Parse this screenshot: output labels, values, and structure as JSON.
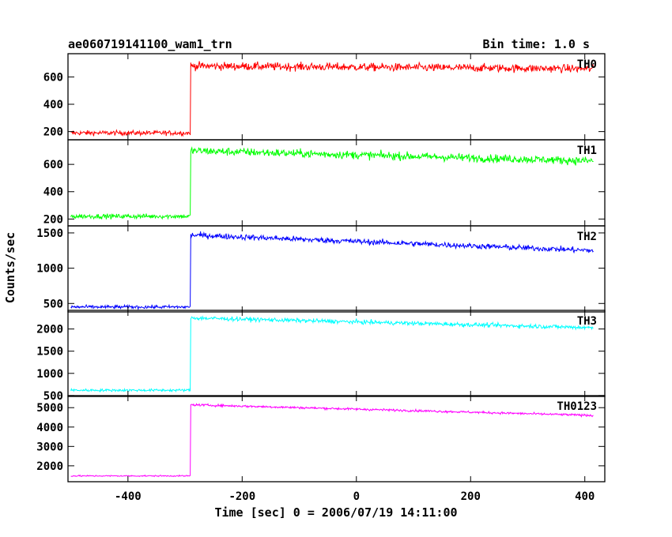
{
  "chart_data": {
    "type": "line",
    "title": "ae060719141100_wam1_trn",
    "bin_time_label": "Bin time: 1.0 s",
    "xlabel": "Time [sec] 0 = 2006/07/19 14:11:00",
    "ylabel": "Counts/sec",
    "xlim": [
      -505,
      435
    ],
    "x_ticks": [
      -400,
      -200,
      0,
      200,
      400
    ],
    "trigger_time": -290,
    "data_range": [
      -500,
      415
    ],
    "grid": false,
    "legend": "none (panel labels at top-right of each panel)",
    "panels": [
      {
        "name": "TH0",
        "color": "#ff0000",
        "ylim": [
          140,
          770
        ],
        "y_ticks": [
          200,
          400,
          600
        ],
        "pre_level": 190,
        "post_start": 680,
        "post_end": 660,
        "noise": 28
      },
      {
        "name": "TH1",
        "color": "#00ff00",
        "ylim": [
          150,
          780
        ],
        "y_ticks": [
          200,
          400,
          600
        ],
        "pre_level": 220,
        "post_start": 700,
        "post_end": 625,
        "noise": 28
      },
      {
        "name": "TH2",
        "color": "#0000ff",
        "ylim": [
          380,
          1600
        ],
        "y_ticks": [
          500,
          1000,
          1500
        ],
        "pre_level": 450,
        "post_start": 1470,
        "post_end": 1250,
        "noise": 38
      },
      {
        "name": "TH3",
        "color": "#00ffff",
        "ylim": [
          480,
          2420
        ],
        "y_ticks": [
          500,
          1000,
          1500,
          2000
        ],
        "pre_level": 620,
        "post_start": 2250,
        "post_end": 2030,
        "noise": 45
      },
      {
        "name": "TH0123",
        "color": "#ff00ff",
        "ylim": [
          1180,
          5620
        ],
        "y_ticks": [
          2000,
          3000,
          4000,
          5000
        ],
        "pre_level": 1480,
        "post_start": 5150,
        "post_end": 4600,
        "noise": 55
      }
    ]
  }
}
